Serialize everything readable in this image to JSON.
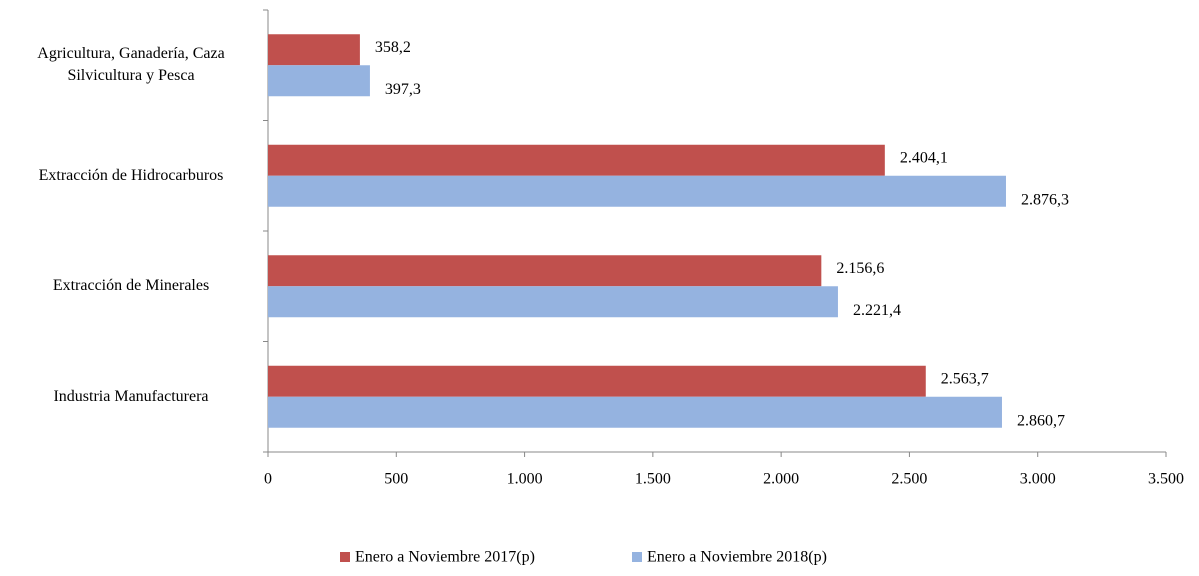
{
  "chart_data": {
    "type": "bar",
    "orientation": "horizontal",
    "categories": [
      "Agricultura, Ganadería, Caza Silvicultura y Pesca",
      "Extracción de Hidrocarburos",
      "Extracción de Minerales",
      "Industria Manufacturera"
    ],
    "series": [
      {
        "name": "Enero a Noviembre 2017(p)",
        "color": "#c0504d",
        "values": [
          358.2,
          2404.1,
          2156.6,
          2563.7
        ],
        "value_labels": [
          "358,2",
          "2.404,1",
          "2.156,6",
          "2.563,7"
        ]
      },
      {
        "name": "Enero a Noviembre 2018(p)",
        "color": "#95b3e0",
        "values": [
          397.3,
          2876.3,
          2221.4,
          2860.7
        ],
        "value_labels": [
          "397,3",
          "2.876,3",
          "2.221,4",
          "2.860,7"
        ]
      }
    ],
    "xlim": [
      0,
      3500
    ],
    "xticks": [
      0,
      500,
      {
        "value": 1000,
        "label": "1.000"
      },
      {
        "value": 1500,
        "label": "1.500"
      },
      {
        "value": 2000,
        "label": "2.000"
      },
      {
        "value": 2500,
        "label": "2.500"
      },
      {
        "value": 3000,
        "label": "3.000"
      },
      {
        "value": 3500,
        "label": "3.500"
      }
    ],
    "legend": "bottom"
  }
}
